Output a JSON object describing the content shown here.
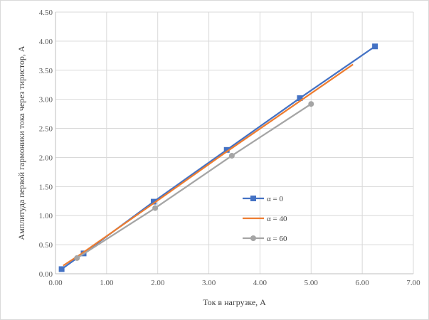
{
  "chart_data": {
    "type": "line",
    "title": "",
    "xlabel": "Ток в нагрузке, А",
    "ylabel": "Амплитуда первой гармоники тока через тиристор, А",
    "xlim": [
      0,
      7
    ],
    "ylim": [
      0,
      4.5
    ],
    "x_ticks": [
      "0.00",
      "1.00",
      "2.00",
      "3.00",
      "4.00",
      "5.00",
      "6.00",
      "7.00"
    ],
    "y_ticks": [
      "0.00",
      "0.50",
      "1.00",
      "1.50",
      "2.00",
      "2.50",
      "3.00",
      "3.50",
      "4.00",
      "4.50"
    ],
    "grid": true,
    "legend_position": "right-center",
    "series": [
      {
        "name": "α = 0",
        "color": "#4472C4",
        "marker": "square",
        "x": [
          0.12,
          0.55,
          1.92,
          3.35,
          4.78,
          6.25
        ],
        "y": [
          0.08,
          0.35,
          1.24,
          2.13,
          3.02,
          3.91
        ]
      },
      {
        "name": "α = 40",
        "color": "#ED7D31",
        "marker": "none",
        "x": [
          0.15,
          0.5,
          1.9,
          3.3,
          4.7,
          5.82
        ],
        "y": [
          0.14,
          0.34,
          1.2,
          2.07,
          2.92,
          3.6
        ]
      },
      {
        "name": "α = 60",
        "color": "#A5A5A5",
        "marker": "circle",
        "x": [
          0.42,
          1.95,
          3.45,
          5.0
        ],
        "y": [
          0.27,
          1.13,
          2.03,
          2.92
        ]
      }
    ]
  }
}
